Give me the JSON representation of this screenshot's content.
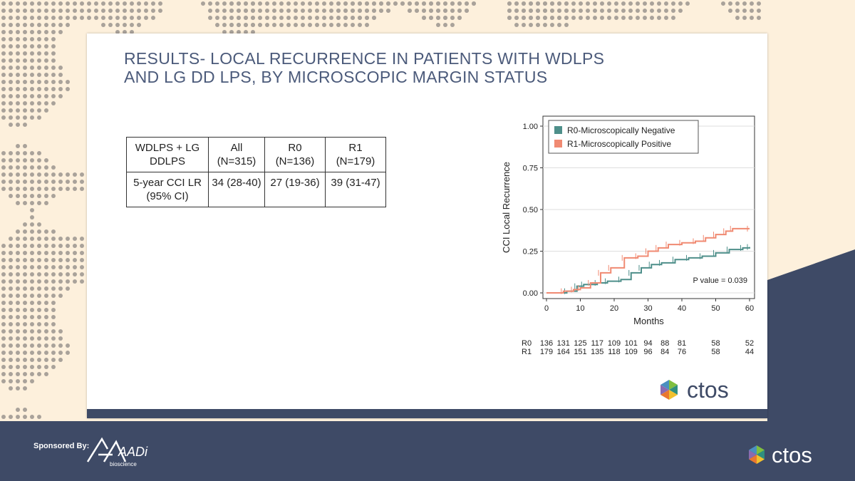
{
  "slide": {
    "title_line1": "RESULTS- LOCAL RECURRENCE IN PATIENTS WITH WDLPS",
    "title_line2": "AND LG DD LPS, BY MICROSCOPIC MARGIN STATUS"
  },
  "table": {
    "header": [
      {
        "line1": "WDLPS + LG",
        "line2": "DDLPS"
      },
      {
        "line1": "All",
        "line2": "(N=315)"
      },
      {
        "line1": "R0",
        "line2": "(N=136)"
      },
      {
        "line1": "R1",
        "line2": "(N=179)"
      }
    ],
    "row": [
      {
        "line1": "5-year CCI LR",
        "line2": "(95% CI)"
      },
      {
        "line1": "34 (28-40)",
        "line2": ""
      },
      {
        "line1": "27 (19-36)",
        "line2": ""
      },
      {
        "line1": "39 (31-47)",
        "line2": ""
      }
    ]
  },
  "chart_data": {
    "type": "line",
    "xlabel": "Months",
    "ylabel": "CCI Local Recurrence",
    "xlim": [
      0,
      60
    ],
    "ylim": [
      0,
      1
    ],
    "xticks": [
      0,
      10,
      20,
      30,
      40,
      50,
      60
    ],
    "yticks": [
      "0.00",
      "0.25",
      "0.50",
      "0.75",
      "1.00"
    ],
    "grid": true,
    "legend_position": "top-left",
    "annotation": "P value = 0.039",
    "series": [
      {
        "name": "R0-Microscopically Negative",
        "color": "#4e8f8a",
        "points": [
          [
            0,
            0
          ],
          [
            6,
            0.01
          ],
          [
            9,
            0.04
          ],
          [
            11,
            0.05
          ],
          [
            15,
            0.06
          ],
          [
            18,
            0.07
          ],
          [
            22,
            0.08
          ],
          [
            25,
            0.12
          ],
          [
            28,
            0.15
          ],
          [
            31,
            0.17
          ],
          [
            34,
            0.18
          ],
          [
            38,
            0.2
          ],
          [
            42,
            0.21
          ],
          [
            46,
            0.22
          ],
          [
            50,
            0.24
          ],
          [
            54,
            0.26
          ],
          [
            58,
            0.27
          ],
          [
            60,
            0.275
          ]
        ]
      },
      {
        "name": "R1-Microscopically Positive",
        "color": "#f08a72",
        "points": [
          [
            0,
            0
          ],
          [
            5,
            0.01
          ],
          [
            8,
            0.02
          ],
          [
            10,
            0.03
          ],
          [
            13,
            0.06
          ],
          [
            16,
            0.12
          ],
          [
            19,
            0.15
          ],
          [
            23,
            0.21
          ],
          [
            27,
            0.22
          ],
          [
            30,
            0.25
          ],
          [
            33,
            0.27
          ],
          [
            36,
            0.29
          ],
          [
            40,
            0.3
          ],
          [
            44,
            0.31
          ],
          [
            47,
            0.33
          ],
          [
            50,
            0.35
          ],
          [
            53,
            0.37
          ],
          [
            55,
            0.385
          ],
          [
            60,
            0.385
          ]
        ]
      }
    ],
    "risk_table": {
      "x": [
        0,
        5,
        10,
        15,
        20,
        25,
        30,
        35,
        40,
        45,
        50,
        55,
        60
      ],
      "rows": [
        {
          "label": "R0",
          "values": [
            "136",
            "131",
            "125",
            "117",
            "109",
            "101",
            "94",
            "88",
            "81",
            "58",
            "52"
          ],
          "x": [
            0,
            5,
            10,
            15,
            20,
            25,
            30,
            35,
            40,
            50,
            60
          ]
        },
        {
          "label": "R1",
          "values": [
            "179",
            "164",
            "151",
            "135",
            "118",
            "109",
            "96",
            "84",
            "76",
            "58",
            "44"
          ],
          "x": [
            0,
            5,
            10,
            15,
            20,
            25,
            30,
            35,
            40,
            50,
            60
          ]
        }
      ]
    }
  },
  "branding": {
    "slide_logo": "ctos",
    "footer_logo": "ctos",
    "sponsored_label": "Sponsored By:",
    "sponsor_name": "AADi",
    "sponsor_sub": "bioscience",
    "colors": {
      "navy": "#3e4a66",
      "cream": "#fdf0dc",
      "title": "#4b5a7a"
    }
  }
}
